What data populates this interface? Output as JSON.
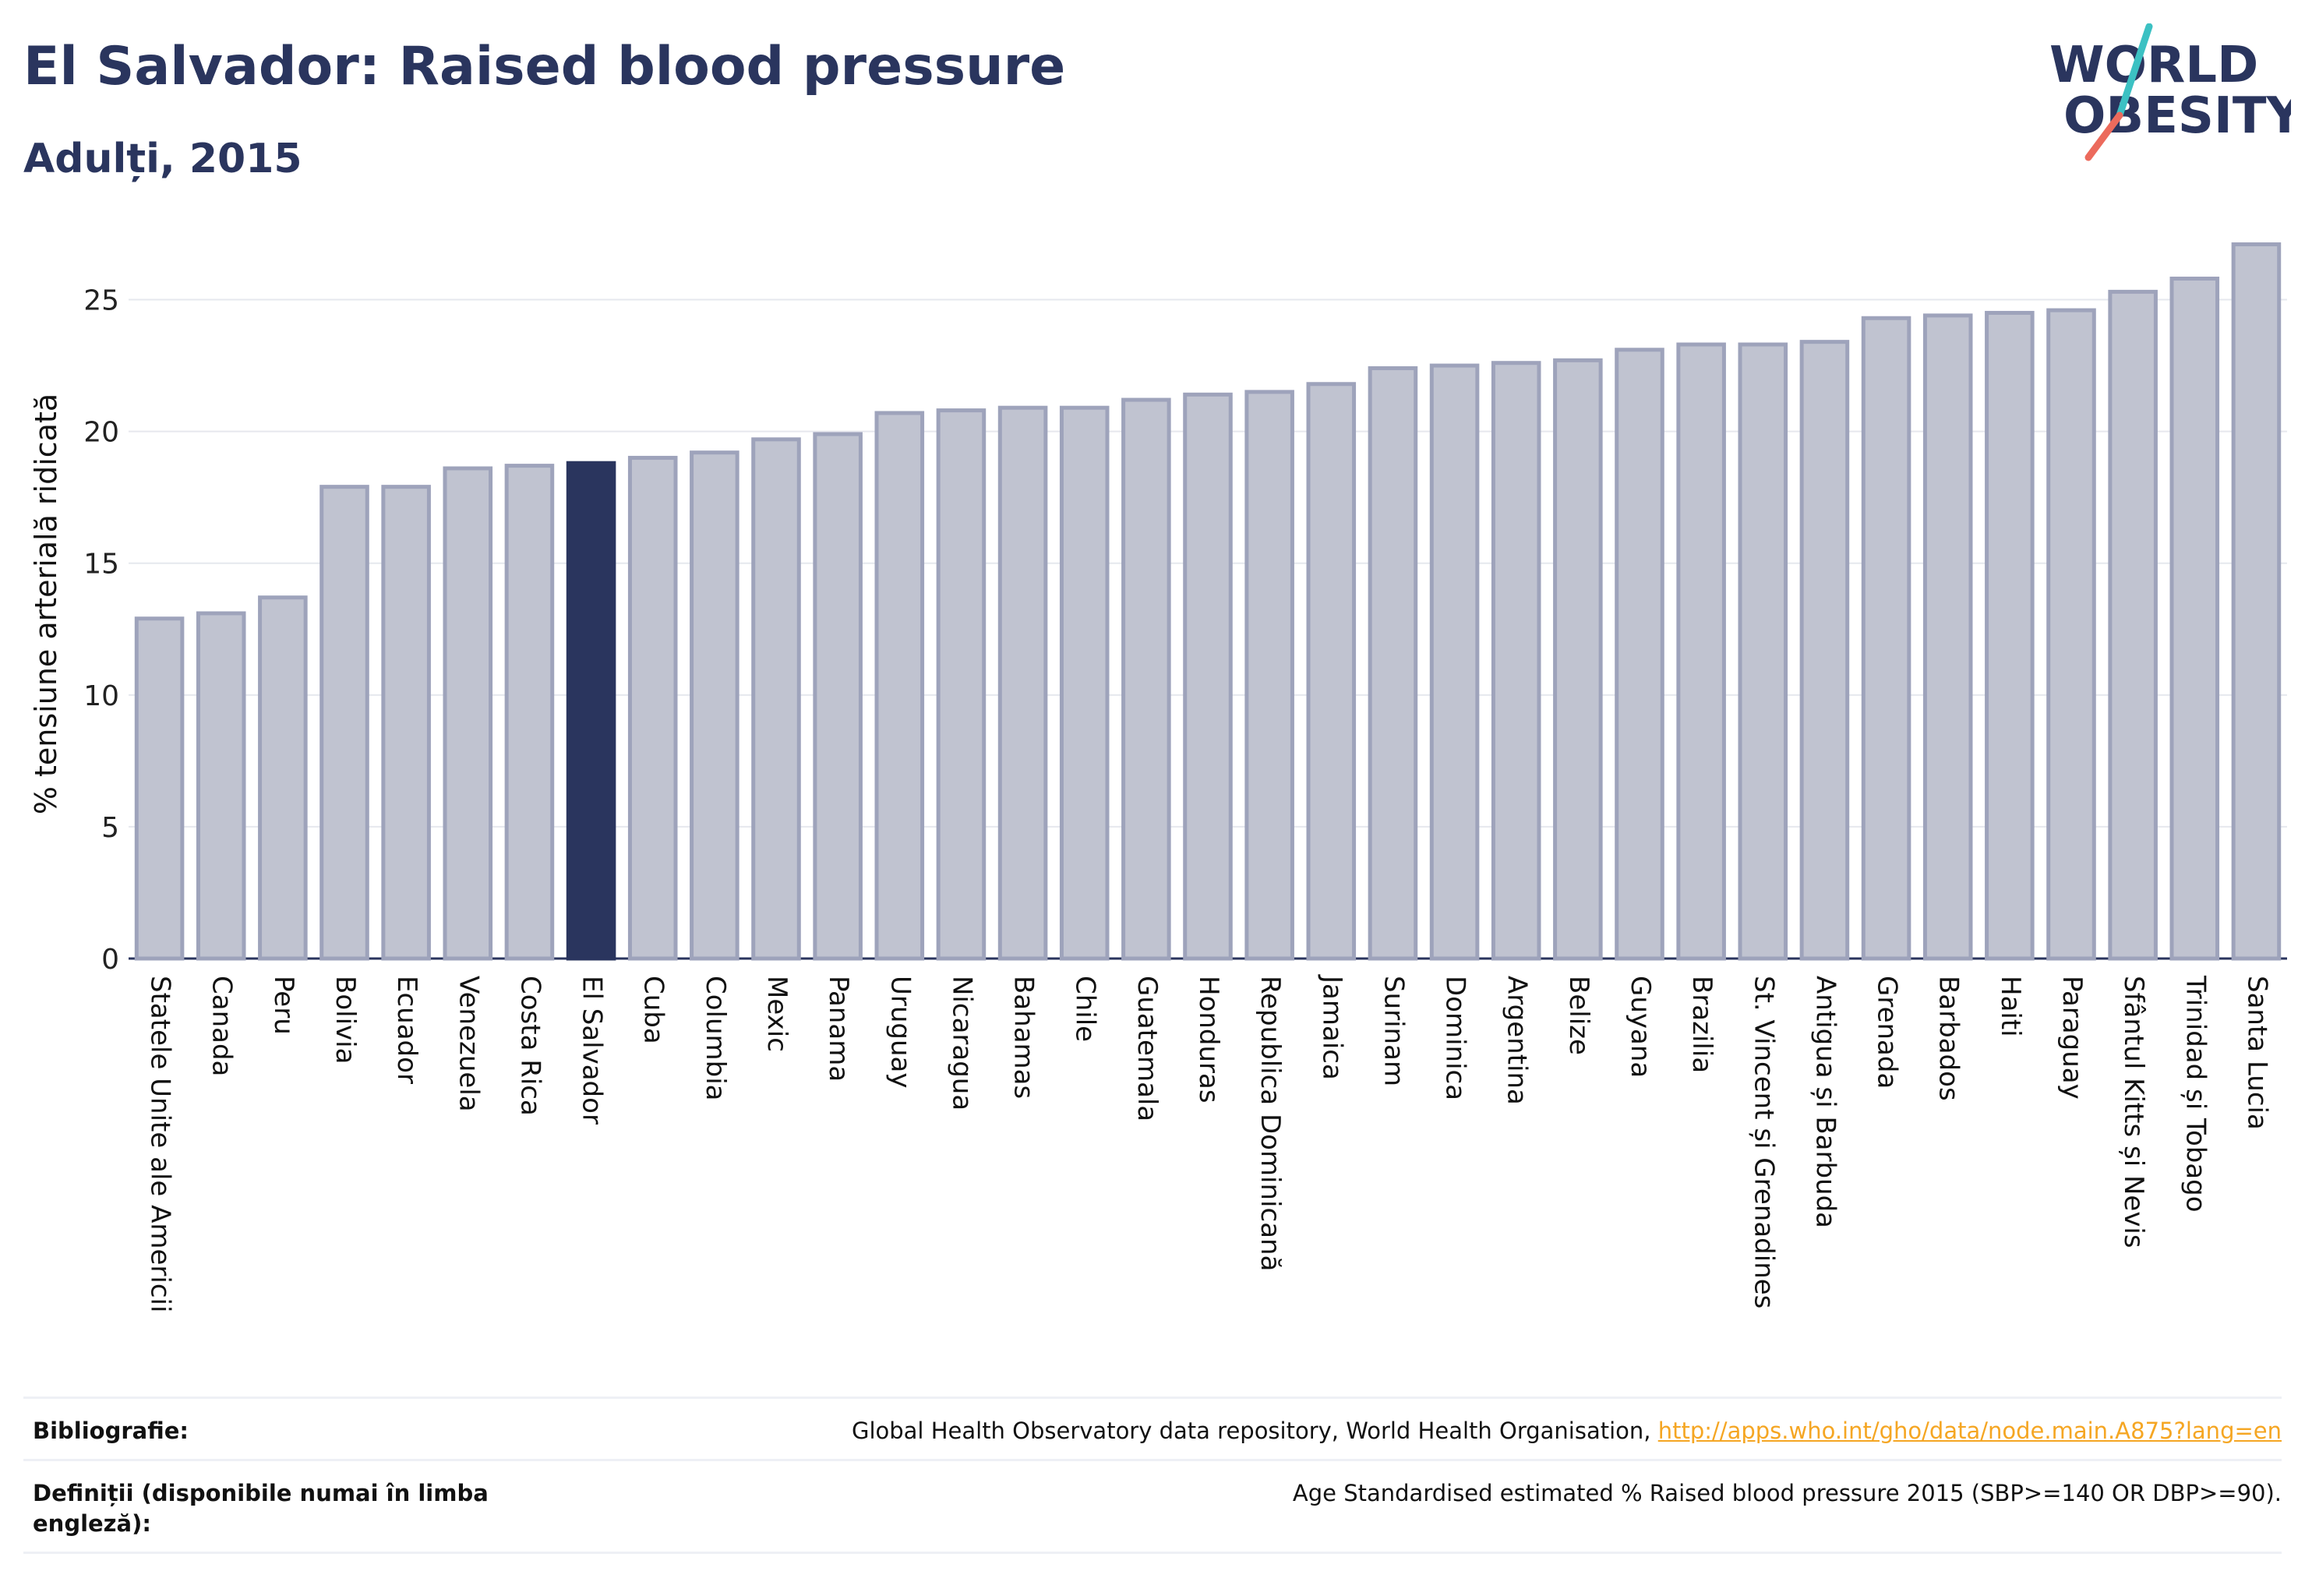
{
  "header": {
    "title": "El Salvador: Raised blood pressure",
    "subtitle": "Adulți, 2015"
  },
  "logo": {
    "line1": "WORLD",
    "line2": "OBESITY",
    "accent_colors": [
      "#3cc1c3",
      "#ec6a5c"
    ]
  },
  "colors": {
    "bar_default": "#c0c3d0",
    "bar_default_stroke": "#9ea3bb",
    "bar_highlight": "#2a355e",
    "text_dark": "#2a355e",
    "link": "#f5a623"
  },
  "chart_data": {
    "type": "bar",
    "ylabel": "% tensiune arterială ridicată",
    "ylim": [
      0,
      27.5
    ],
    "yticks": [
      0,
      5,
      10,
      15,
      20,
      25
    ],
    "grid": true,
    "highlight": "El Salvador",
    "categories": [
      "Statele Unite ale Americii",
      "Canada",
      "Peru",
      "Bolivia",
      "Ecuador",
      "Venezuela",
      "Costa Rica",
      "El Salvador",
      "Cuba",
      "Columbia",
      "Mexic",
      "Panama",
      "Uruguay",
      "Nicaragua",
      "Bahamas",
      "Chile",
      "Guatemala",
      "Honduras",
      "Republica Dominicană",
      "Jamaica",
      "Surinam",
      "Dominica",
      "Argentina",
      "Belize",
      "Guyana",
      "Brazilia",
      "St. Vincent și Grenadines",
      "Antigua și Barbuda",
      "Grenada",
      "Barbados",
      "Haiti",
      "Paraguay",
      "Sfântul Kitts și Nevis",
      "Trinidad și Tobago",
      "Santa Lucia"
    ],
    "values": [
      12.9,
      13.1,
      13.7,
      17.9,
      17.9,
      18.6,
      18.7,
      18.8,
      19.0,
      19.2,
      19.7,
      19.9,
      20.7,
      20.8,
      20.9,
      20.9,
      21.2,
      21.4,
      21.5,
      21.8,
      22.4,
      22.5,
      22.6,
      22.7,
      23.1,
      23.3,
      23.3,
      23.4,
      24.3,
      24.4,
      24.5,
      24.6,
      25.3,
      25.8,
      27.1
    ]
  },
  "footer": {
    "bibliography_label": "Bibliografie:",
    "bibliography_text": "Global Health Observatory data repository, World Health Organisation,",
    "bibliography_link": "http://apps.who.int/gho/data/node.main.A875?lang=en",
    "definitions_label": "Definiții (disponibile numai în limba engleză):",
    "definitions_text": "Age Standardised estimated % Raised blood pressure 2015 (SBP>=140 OR DBP>=90)."
  }
}
